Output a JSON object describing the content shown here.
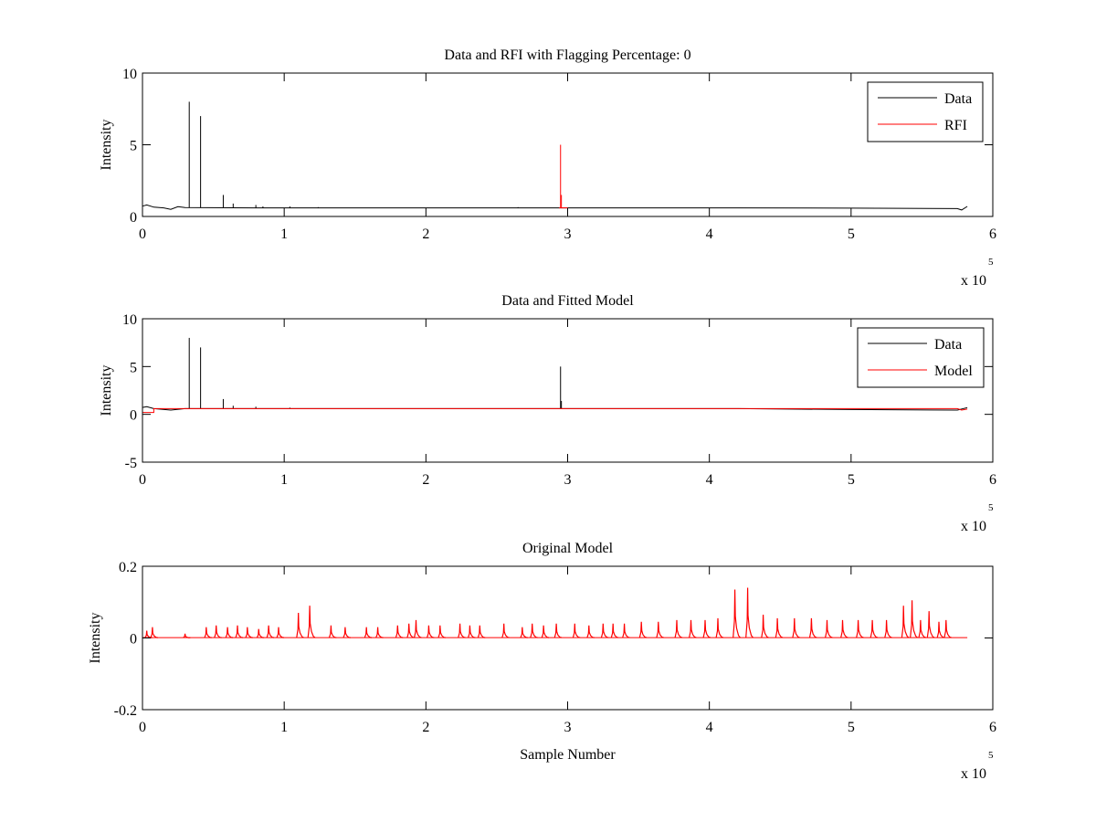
{
  "chart_data": [
    {
      "type": "line",
      "title": "Data and RFI with Flagging Percentage: 0",
      "xlabel": "",
      "ylabel": "Intensity",
      "xlim": [
        0,
        600000
      ],
      "ylim": [
        0,
        10
      ],
      "xticks": [
        0,
        100000,
        200000,
        300000,
        400000,
        500000,
        600000
      ],
      "xtick_labels": [
        "0",
        "1",
        "2",
        "3",
        "4",
        "5",
        "6"
      ],
      "yticks": [
        0,
        5,
        10
      ],
      "ytick_labels": [
        "0",
        "5",
        "10"
      ],
      "x_exponent": {
        "base": "x 10",
        "power": "5"
      },
      "legend": {
        "placement": "top-right",
        "entries": [
          {
            "name": "Data",
            "color": "#000000"
          },
          {
            "name": "RFI",
            "color": "#ff0000"
          }
        ]
      },
      "series": [
        {
          "name": "Data",
          "color": "#000000",
          "baseline": [
            [
              0,
              0.72
            ],
            [
              3000,
              0.8
            ],
            [
              8000,
              0.65
            ],
            [
              15000,
              0.6
            ],
            [
              20000,
              0.5
            ],
            [
              25000,
              0.68
            ],
            [
              30000,
              0.62
            ],
            [
              80000,
              0.6
            ],
            [
              200000,
              0.6
            ],
            [
              295000,
              0.6
            ],
            [
              420000,
              0.6
            ],
            [
              500000,
              0.58
            ],
            [
              575000,
              0.55
            ],
            [
              578000,
              0.45
            ],
            [
              582000,
              0.7
            ]
          ],
          "spikes": [
            [
              33000,
              8.0
            ],
            [
              41000,
              7.0
            ],
            [
              57000,
              1.5
            ],
            [
              64000,
              0.9
            ],
            [
              80000,
              0.8
            ],
            [
              85000,
              0.7
            ],
            [
              104000,
              0.7
            ],
            [
              124000,
              0.65
            ],
            [
              265000,
              0.65
            ]
          ]
        },
        {
          "name": "RFI",
          "color": "#ff0000",
          "baseline": [
            [
              294000,
              0.6
            ],
            [
              300000,
              0.6
            ]
          ],
          "spikes": [
            [
              295000,
              5.0
            ],
            [
              295600,
              1.5
            ]
          ]
        }
      ]
    },
    {
      "type": "line",
      "title": "Data and Fitted Model",
      "xlabel": "",
      "ylabel": "Intensity",
      "xlim": [
        0,
        600000
      ],
      "ylim": [
        -5,
        10
      ],
      "xticks": [
        0,
        100000,
        200000,
        300000,
        400000,
        500000,
        600000
      ],
      "xtick_labels": [
        "0",
        "1",
        "2",
        "3",
        "4",
        "5",
        "6"
      ],
      "yticks": [
        -5,
        0,
        5,
        10
      ],
      "ytick_labels": [
        "-5",
        "0",
        "5",
        "10"
      ],
      "x_exponent": {
        "base": "x 10",
        "power": "5"
      },
      "legend": {
        "placement": "top-right",
        "entries": [
          {
            "name": "Data",
            "color": "#000000"
          },
          {
            "name": "Model",
            "color": "#ff0000"
          }
        ]
      },
      "series": [
        {
          "name": "Data",
          "color": "#000000",
          "baseline": [
            [
              0,
              0.72
            ],
            [
              3000,
              0.8
            ],
            [
              8000,
              0.6
            ],
            [
              20000,
              0.45
            ],
            [
              30000,
              0.6
            ],
            [
              200000,
              0.6
            ],
            [
              420000,
              0.6
            ],
            [
              500000,
              0.5
            ],
            [
              575000,
              0.45
            ],
            [
              582000,
              0.7
            ]
          ],
          "spikes": [
            [
              33000,
              8.0
            ],
            [
              41000,
              7.0
            ],
            [
              57000,
              1.6
            ],
            [
              64000,
              0.9
            ],
            [
              80000,
              0.8
            ],
            [
              104000,
              0.7
            ],
            [
              295000,
              5.0
            ],
            [
              295600,
              1.4
            ]
          ]
        },
        {
          "name": "Model",
          "color": "#ff0000",
          "baseline": [
            [
              0,
              0.2
            ],
            [
              8000,
              0.2
            ],
            [
              8000,
              0.6
            ],
            [
              575000,
              0.6
            ],
            [
              578000,
              0.45
            ],
            [
              582000,
              0.55
            ]
          ],
          "spikes": []
        }
      ]
    },
    {
      "type": "line",
      "title": "Original Model",
      "xlabel": "Sample Number",
      "ylabel": "Intensity",
      "xlim": [
        0,
        600000
      ],
      "ylim": [
        -0.2,
        0.2
      ],
      "xticks": [
        0,
        100000,
        200000,
        300000,
        400000,
        500000,
        600000
      ],
      "xtick_labels": [
        "0",
        "1",
        "2",
        "3",
        "4",
        "5",
        "6"
      ],
      "yticks": [
        -0.2,
        0,
        0.2
      ],
      "ytick_labels": [
        "-0.2",
        "0",
        "0.2"
      ],
      "x_exponent": {
        "base": "x 10",
        "power": "5"
      },
      "legend": null,
      "series": [
        {
          "name": "",
          "color": "#ff0000",
          "baseline": [
            [
              0,
              0.001
            ],
            [
              582000,
              0.001
            ]
          ],
          "peaks": [
            [
              3000,
              0.02
            ],
            [
              7000,
              0.03
            ],
            [
              30000,
              0.012
            ],
            [
              45000,
              0.03
            ],
            [
              52000,
              0.035
            ],
            [
              60000,
              0.03
            ],
            [
              67000,
              0.035
            ],
            [
              74000,
              0.03
            ],
            [
              82000,
              0.025
            ],
            [
              89000,
              0.035
            ],
            [
              96000,
              0.03
            ],
            [
              110000,
              0.07
            ],
            [
              118000,
              0.09
            ],
            [
              133000,
              0.035
            ],
            [
              143000,
              0.03
            ],
            [
              158000,
              0.03
            ],
            [
              166000,
              0.03
            ],
            [
              180000,
              0.035
            ],
            [
              188000,
              0.04
            ],
            [
              193000,
              0.05
            ],
            [
              202000,
              0.035
            ],
            [
              210000,
              0.035
            ],
            [
              224000,
              0.04
            ],
            [
              231000,
              0.035
            ],
            [
              238000,
              0.035
            ],
            [
              255000,
              0.04
            ],
            [
              268000,
              0.03
            ],
            [
              275000,
              0.04
            ],
            [
              283000,
              0.035
            ],
            [
              292000,
              0.04
            ],
            [
              305000,
              0.04
            ],
            [
              315000,
              0.035
            ],
            [
              325000,
              0.04
            ],
            [
              332000,
              0.04
            ],
            [
              340000,
              0.04
            ],
            [
              352000,
              0.045
            ],
            [
              364000,
              0.045
            ],
            [
              377000,
              0.05
            ],
            [
              387000,
              0.05
            ],
            [
              397000,
              0.05
            ],
            [
              406000,
              0.055
            ],
            [
              418000,
              0.135
            ],
            [
              427000,
              0.14
            ],
            [
              438000,
              0.065
            ],
            [
              448000,
              0.055
            ],
            [
              460000,
              0.055
            ],
            [
              472000,
              0.055
            ],
            [
              483000,
              0.05
            ],
            [
              494000,
              0.05
            ],
            [
              505000,
              0.05
            ],
            [
              515000,
              0.05
            ],
            [
              525000,
              0.05
            ],
            [
              537000,
              0.09
            ],
            [
              543000,
              0.105
            ],
            [
              549000,
              0.05
            ],
            [
              555000,
              0.075
            ],
            [
              562000,
              0.045
            ],
            [
              567000,
              0.05
            ]
          ]
        }
      ]
    }
  ]
}
